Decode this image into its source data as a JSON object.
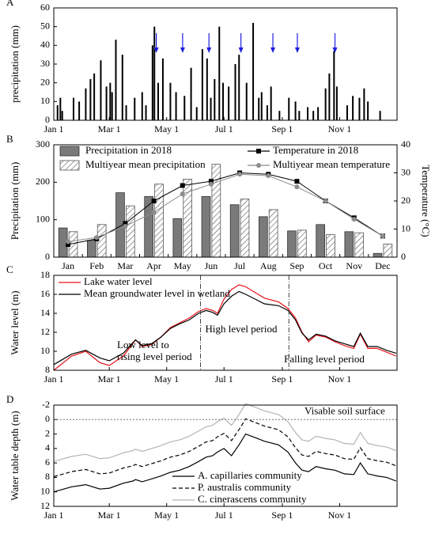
{
  "chart_data": [
    {
      "type": "bar",
      "panel_label": "A",
      "y_label": "precipitation (mm)",
      "color": "#000000",
      "x": [
        5,
        8,
        10,
        22,
        28,
        35,
        40,
        44,
        51,
        57,
        61,
        63,
        67,
        74,
        78,
        87,
        95,
        99,
        106,
        108,
        112,
        117,
        125,
        131,
        140,
        147,
        153,
        159,
        164,
        168,
        172,
        177,
        181,
        187,
        194,
        198,
        206,
        213,
        219,
        222,
        228,
        232,
        241,
        251,
        258,
        262,
        271,
        277,
        282,
        290,
        294,
        299,
        302,
        313,
        319,
        326,
        331,
        335,
        348
      ],
      "values": [
        8,
        12,
        5,
        12,
        10,
        17,
        22,
        25,
        32,
        18,
        20,
        15,
        43,
        35,
        8,
        12,
        15,
        8,
        40,
        50,
        20,
        33,
        20,
        15,
        13,
        28,
        7,
        38,
        33,
        12,
        22,
        50,
        20,
        18,
        30,
        35,
        20,
        52,
        12,
        15,
        8,
        18,
        5,
        12,
        10,
        5,
        7,
        5,
        7,
        17,
        25,
        37,
        18,
        8,
        13,
        12,
        17,
        10,
        5
      ],
      "arrows": [
        110,
        138,
        166,
        200,
        234,
        260,
        300
      ],
      "arrow_color": "#1f1fe0",
      "xlim": [
        1,
        366
      ],
      "xticks": [
        {
          "value": 1,
          "label": "Jan 1"
        },
        {
          "value": 60,
          "label": "Mar 1"
        },
        {
          "value": 121,
          "label": "May 1"
        },
        {
          "value": 182,
          "label": "Jul 1"
        },
        {
          "value": 244,
          "label": "Sep 1"
        },
        {
          "value": 305,
          "label": "Nov 1"
        }
      ],
      "ylim": [
        0,
        60
      ],
      "yticks": [
        0,
        10,
        20,
        30,
        40,
        50,
        60
      ]
    },
    {
      "type": "bar",
      "panel_label": "B",
      "y_label": "Precipitation (mm)",
      "y2_label": "Temperature (°C)",
      "categories": [
        "Jan",
        "Feb",
        "Mar",
        "Apr",
        "May",
        "Jun",
        "Jul",
        "Aug",
        "Sep",
        "Oct",
        "Nov",
        "Dec"
      ],
      "series": [
        {
          "name": "Precipitation in 2018",
          "type": "bar",
          "color": "#7a7a7a",
          "values": [
            78,
            45,
            172,
            162,
            103,
            162,
            140,
            108,
            70,
            87,
            68,
            10
          ]
        },
        {
          "name": "Multiyear mean precipitation",
          "type": "bar",
          "hatch": true,
          "color": "#555555",
          "values": [
            68,
            87,
            137,
            195,
            208,
            248,
            155,
            127,
            72,
            60,
            65,
            35
          ]
        },
        {
          "name": "Temperature in 2018",
          "type": "line",
          "axis": "y2",
          "marker": "square",
          "color": "#000000",
          "values": [
            4.5,
            6.5,
            12,
            20,
            25.5,
            27,
            30,
            29.5,
            27,
            20,
            14,
            7.5
          ]
        },
        {
          "name": "Multiyear mean temperature",
          "type": "line",
          "axis": "y2",
          "marker": "circle",
          "color": "#8c8c8c",
          "values": [
            5.5,
            7,
            11,
            16,
            22.5,
            26,
            29.5,
            29,
            25,
            20,
            13.5,
            7.5
          ]
        }
      ],
      "ylim": [
        0,
        300
      ],
      "yticks": [
        0,
        100,
        200,
        300
      ],
      "y2lim": [
        0,
        40
      ],
      "y2ticks": [
        0,
        10,
        20,
        30,
        40
      ]
    },
    {
      "type": "line",
      "panel_label": "C",
      "y_label": "Water level (m)",
      "legend": "upper left",
      "x": [
        1,
        20,
        35,
        50,
        60,
        75,
        85,
        88,
        95,
        105,
        115,
        125,
        135,
        145,
        155,
        163,
        170,
        175,
        182,
        190,
        198,
        205,
        215,
        225,
        240,
        250,
        258,
        265,
        272,
        280,
        290,
        300,
        310,
        320,
        327,
        335,
        345,
        355,
        365
      ],
      "series": [
        {
          "name": "Lake water level",
          "color": "#e8141b",
          "values": [
            8.0,
            9.5,
            10,
            8.8,
            8.5,
            9.5,
            10.8,
            11.2,
            10.5,
            10.7,
            11.5,
            12.5,
            13,
            13.5,
            14.2,
            14.5,
            14.3,
            14.0,
            15.5,
            16.5,
            17.0,
            16.8,
            16.2,
            15.6,
            15.2,
            14.5,
            13.5,
            12,
            11,
            11.7,
            11.5,
            11,
            10.6,
            10.3,
            11.8,
            10.3,
            10.3,
            9.9,
            9.5
          ]
        },
        {
          "name": "Mean groundwater level in wetland",
          "color": "#000000",
          "values": [
            8.6,
            9.7,
            10.1,
            9.3,
            9.0,
            9.8,
            10.9,
            11.2,
            10.6,
            10.8,
            11.5,
            12.4,
            12.9,
            13.3,
            14.0,
            14.3,
            14.1,
            13.8,
            15.0,
            15.8,
            16.3,
            16.0,
            15.5,
            15.0,
            14.8,
            14.3,
            13.3,
            11.9,
            11.2,
            11.8,
            11.6,
            11.1,
            10.8,
            10.5,
            11.9,
            10.5,
            10.5,
            10.1,
            9.8
          ]
        }
      ],
      "period_bounds": [
        157,
        251
      ],
      "annotations": [
        [
          "High  level period"
        ],
        [
          "Low level to",
          "rising level period"
        ],
        [
          "Falling level period"
        ]
      ],
      "xlim": [
        1,
        366
      ],
      "xticks": [
        {
          "value": 1,
          "label": "Jan 1"
        },
        {
          "value": 60,
          "label": "Mar 1"
        },
        {
          "value": 121,
          "label": "May 1"
        },
        {
          "value": 182,
          "label": "Jul 1"
        },
        {
          "value": 244,
          "label": "Sep 1"
        },
        {
          "value": 305,
          "label": "Nov 1"
        }
      ],
      "ylim": [
        8,
        18
      ],
      "yticks": [
        8,
        10,
        12,
        14,
        16,
        18
      ]
    },
    {
      "type": "line",
      "panel_label": "D",
      "y_label": "Water table depth (m)",
      "legend": "lower center",
      "x": [
        1,
        20,
        35,
        50,
        60,
        75,
        85,
        88,
        95,
        105,
        115,
        125,
        135,
        145,
        155,
        163,
        170,
        175,
        182,
        190,
        198,
        205,
        215,
        225,
        240,
        250,
        258,
        265,
        272,
        280,
        290,
        300,
        310,
        320,
        327,
        335,
        345,
        355,
        365
      ],
      "series": [
        {
          "name": "A. capillaries community",
          "color": "#000000",
          "values": [
            10,
            9.3,
            9.0,
            9.6,
            9.5,
            8.8,
            8.5,
            8.3,
            8.6,
            8.2,
            7.8,
            7.3,
            7.0,
            6.5,
            5.8,
            5.2,
            5.0,
            4.5,
            4.0,
            5.0,
            3.5,
            2.0,
            2.5,
            3.0,
            3.5,
            4.5,
            6.0,
            7.0,
            7.2,
            6.5,
            6.8,
            7.0,
            7.5,
            7.6,
            6.0,
            7.5,
            7.8,
            8.0,
            8.5
          ]
        },
        {
          "name": "P. australis community",
          "color": "#000000",
          "dash": true,
          "values": [
            7.9,
            7.2,
            6.9,
            7.5,
            7.4,
            6.7,
            6.4,
            6.2,
            6.5,
            6.1,
            5.7,
            5.2,
            4.9,
            4.4,
            3.7,
            3.1,
            2.9,
            2.4,
            1.9,
            2.9,
            1.4,
            -0.1,
            0.4,
            0.9,
            1.4,
            2.4,
            3.9,
            4.9,
            5.1,
            4.4,
            4.7,
            4.9,
            5.4,
            5.5,
            3.9,
            5.4,
            5.7,
            5.9,
            6.4
          ]
        },
        {
          "name": "C. cinerascens community",
          "color": "#b4b4b4",
          "values": [
            5.8,
            5.1,
            4.8,
            5.4,
            5.3,
            4.6,
            4.3,
            4.1,
            4.4,
            4.0,
            3.6,
            3.1,
            2.8,
            2.3,
            1.6,
            1.0,
            0.8,
            0.3,
            -0.2,
            0.8,
            -0.7,
            -2.2,
            -1.7,
            -1.2,
            -0.7,
            0.3,
            1.8,
            2.8,
            3.0,
            2.3,
            2.6,
            2.8,
            3.3,
            3.4,
            1.8,
            3.3,
            3.6,
            3.8,
            4.3
          ]
        }
      ],
      "reference": {
        "value": 0,
        "label": "Visable soil surface"
      },
      "xlim": [
        1,
        366
      ],
      "xticks": [
        {
          "value": 1,
          "label": "Jan 1"
        },
        {
          "value": 60,
          "label": "Mar 1"
        },
        {
          "value": 121,
          "label": "May 1"
        },
        {
          "value": 182,
          "label": "Jul 1"
        },
        {
          "value": 244,
          "label": "Sep 1"
        },
        {
          "value": 305,
          "label": "Nov 1"
        }
      ],
      "ylim": [
        12,
        -2
      ],
      "yticks": [
        -2,
        0,
        2,
        4,
        6,
        8,
        10,
        12
      ]
    }
  ]
}
